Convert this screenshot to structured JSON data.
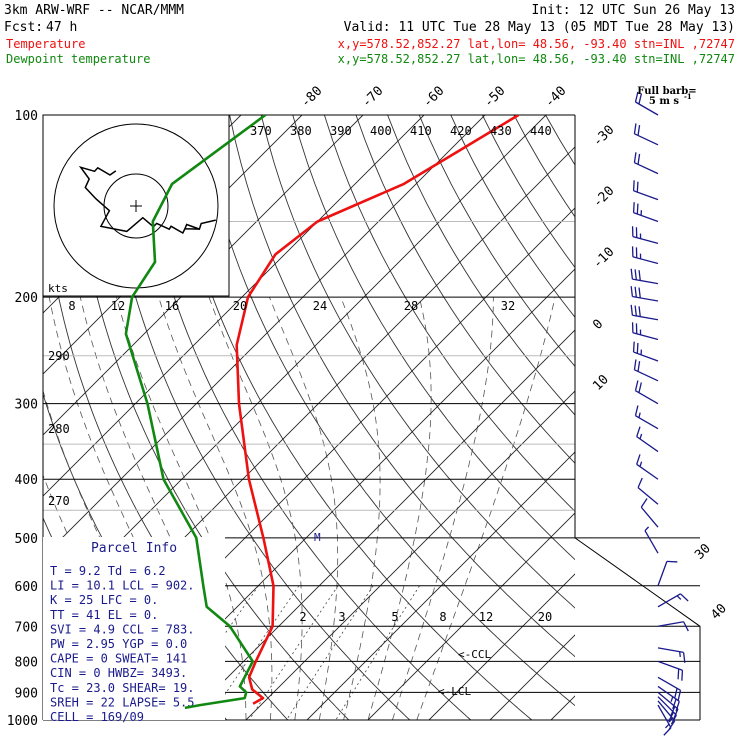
{
  "header": {
    "model": "3km ARW-WRF -- NCAR/MMM",
    "init": "Init: 12 UTC Sun 26 May 13",
    "fcst_label": "Fcst:",
    "fcst_value": "47 h",
    "valid": "Valid: 11 UTC Tue 28 May 13 (05 MDT Tue 28 May 13)",
    "temp_label": "Temperature",
    "temp_info": "x,y=578.52,852.27   lat,lon= 48.56, -93.40  stn=INL ,72747",
    "dew_label": "Dewpoint temperature",
    "dew_info": "x,y=578.52,852.27   lat,lon= 48.56, -93.40  stn=INL ,72747"
  },
  "colors": {
    "temperature": "#ee1111",
    "dewpoint": "#118811",
    "wind": "#1a1a8c"
  },
  "full_barb_label": "Full barb=",
  "full_barb_value": "5 m s",
  "full_barb_sup": "-1",
  "hodo_label": "kts",
  "lcl_label": "<-LCL",
  "ccl_label": "<-CCL",
  "m_label": "M",
  "parcel": {
    "title": "Parcel Info",
    "rows": [
      "T  =    9.2 Td =   6.2",
      "LI =   10.1 LCL =  902.",
      "K  =     25 LFC =    0.",
      "TT =     41 EL  =    0.",
      "SVI =   4.9 CCL =  783.",
      "PW =   2.95 YGP =   0.0",
      "CAPE =    0 SWEAT=  141",
      "CIN =     0 HWBZ= 3493.",
      "Tc =   23.0 SHEAR=  19.",
      "SREH =   22 LAPSE=  5.5",
      "CELL = 169/09"
    ]
  },
  "chart_data": {
    "type": "skew-t",
    "y_axis": "pressure (hPa)",
    "pressure_levels": [
      100,
      200,
      300,
      400,
      500,
      600,
      700,
      800,
      900,
      1000
    ],
    "pressure_labels": [
      "100",
      "200",
      "300",
      "400",
      "500",
      "600",
      "700",
      "800",
      "900",
      "1000"
    ],
    "isotherm_labels_top": [
      "-80",
      "-70",
      "-60",
      "-50",
      "-40"
    ],
    "isotherm_labels_right": [
      "-30",
      "-20",
      "-10",
      "0",
      "10"
    ],
    "isotherm_labels_bottom_right": [
      "30",
      "40"
    ],
    "theta_labels": [
      "370",
      "380",
      "390",
      "400",
      "410",
      "420",
      "430",
      "440"
    ],
    "mixing_ratio_labels": [
      "2",
      "3",
      "5",
      "8",
      "12",
      "20"
    ],
    "speed_labels": [
      "8",
      "12",
      "16",
      "20",
      "24",
      "28",
      "32"
    ],
    "theta_e_labels": [
      "290",
      "280",
      "270"
    ],
    "temperature": [
      {
        "p": 100,
        "t": -44.5
      },
      {
        "p": 115,
        "t": -48.5
      },
      {
        "p": 130,
        "t": -52
      },
      {
        "p": 150,
        "t": -60
      },
      {
        "p": 170,
        "t": -61.5
      },
      {
        "p": 200,
        "t": -59
      },
      {
        "p": 240,
        "t": -53
      },
      {
        "p": 300,
        "t": -43
      },
      {
        "p": 400,
        "t": -29
      },
      {
        "p": 500,
        "t": -17
      },
      {
        "p": 600,
        "t": -7.5
      },
      {
        "p": 700,
        "t": -1
      },
      {
        "p": 800,
        "t": 2
      },
      {
        "p": 850,
        "t": 3.5
      },
      {
        "p": 890,
        "t": 6
      },
      {
        "p": 920,
        "t": 9.2
      },
      {
        "p": 940,
        "t": 8.5
      }
    ],
    "dewpoint": [
      {
        "p": 100,
        "t": -86
      },
      {
        "p": 130,
        "t": -90
      },
      {
        "p": 150,
        "t": -87
      },
      {
        "p": 175,
        "t": -80
      },
      {
        "p": 200,
        "t": -78
      },
      {
        "p": 230,
        "t": -73
      },
      {
        "p": 300,
        "t": -58
      },
      {
        "p": 400,
        "t": -43
      },
      {
        "p": 500,
        "t": -28
      },
      {
        "p": 600,
        "t": -19
      },
      {
        "p": 650,
        "t": -15
      },
      {
        "p": 700,
        "t": -8
      },
      {
        "p": 800,
        "t": 1.5
      },
      {
        "p": 880,
        "t": 3.5
      },
      {
        "p": 900,
        "t": 5.5
      },
      {
        "p": 920,
        "t": 6.2
      },
      {
        "p": 945,
        "t": 0
      },
      {
        "p": 955,
        "t": -2
      }
    ],
    "wind_barbs": [
      {
        "p": 100,
        "dir": 300,
        "kt": 20
      },
      {
        "p": 112,
        "dir": 295,
        "kt": 20
      },
      {
        "p": 125,
        "dir": 295,
        "kt": 20
      },
      {
        "p": 138,
        "dir": 290,
        "kt": 20
      },
      {
        "p": 150,
        "dir": 290,
        "kt": 25
      },
      {
        "p": 163,
        "dir": 285,
        "kt": 25
      },
      {
        "p": 176,
        "dir": 285,
        "kt": 25
      },
      {
        "p": 190,
        "dir": 280,
        "kt": 30
      },
      {
        "p": 203,
        "dir": 280,
        "kt": 30
      },
      {
        "p": 218,
        "dir": 280,
        "kt": 30
      },
      {
        "p": 235,
        "dir": 285,
        "kt": 25
      },
      {
        "p": 255,
        "dir": 290,
        "kt": 25
      },
      {
        "p": 275,
        "dir": 295,
        "kt": 20
      },
      {
        "p": 300,
        "dir": 300,
        "kt": 20
      },
      {
        "p": 330,
        "dir": 300,
        "kt": 15
      },
      {
        "p": 360,
        "dir": 305,
        "kt": 15
      },
      {
        "p": 400,
        "dir": 305,
        "kt": 15
      },
      {
        "p": 440,
        "dir": 310,
        "kt": 10
      },
      {
        "p": 480,
        "dir": 320,
        "kt": 10
      },
      {
        "p": 530,
        "dir": 330,
        "kt": 5
      },
      {
        "p": 600,
        "dir": 20,
        "kt": 10
      },
      {
        "p": 650,
        "dir": 60,
        "kt": 15
      },
      {
        "p": 700,
        "dir": 80,
        "kt": 10
      },
      {
        "p": 760,
        "dir": 100,
        "kt": 15
      },
      {
        "p": 800,
        "dir": 110,
        "kt": 20
      },
      {
        "p": 850,
        "dir": 120,
        "kt": 20
      },
      {
        "p": 880,
        "dir": 125,
        "kt": 25
      },
      {
        "p": 900,
        "dir": 130,
        "kt": 20
      },
      {
        "p": 915,
        "dir": 135,
        "kt": 20
      },
      {
        "p": 930,
        "dir": 140,
        "kt": 15
      },
      {
        "p": 945,
        "dir": 150,
        "kt": 15
      }
    ]
  }
}
